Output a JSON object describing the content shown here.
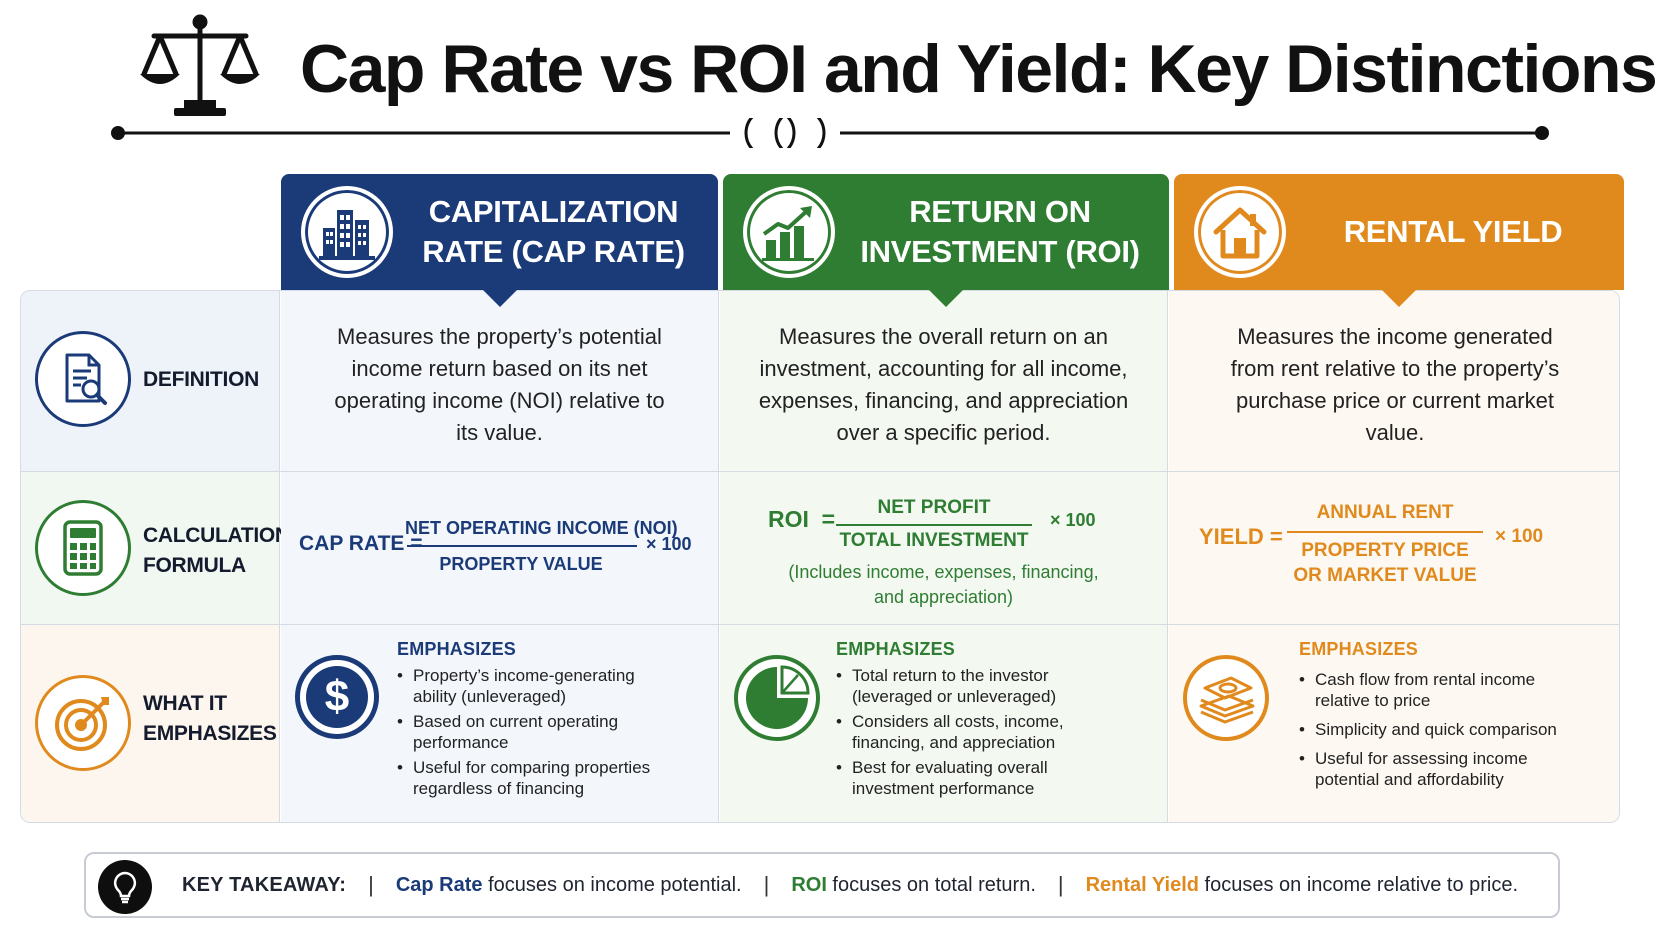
{
  "title": "Cap Rate vs ROI and Yield: Key Distinctions",
  "columns": [
    {
      "title": "CAPITALIZATION RATE (CAP RATE)",
      "icon": "buildings-icon",
      "color": "#1b3a78"
    },
    {
      "title": "RETURN ON INVESTMENT (ROI)",
      "icon": "growth-chart-icon",
      "color": "#2e7d32"
    },
    {
      "title": "RENTAL YIELD",
      "icon": "house-icon",
      "color": "#e08a1e"
    }
  ],
  "rows": {
    "definition": {
      "label": "DEFINITION",
      "icon": "document-search-icon",
      "cells": [
        "Measures the property’s potential income return based on its net operating income (NOI) relative to its value.",
        "Measures the overall return on an investment, accounting for all income, expenses, financing, and appreciation over a specific period.",
        "Measures the income generated from rent relative to the property’s purchase price or current market value."
      ]
    },
    "formula": {
      "label": "CALCULATION FORMULA",
      "icon": "calculator-icon",
      "cap": {
        "lhs": "CAP RATE =",
        "numerator": "NET OPERATING INCOME (NOI)",
        "denominator": "PROPERTY VALUE",
        "multiplier": "× 100"
      },
      "roi": {
        "lhs": "ROI  =",
        "numerator": "NET PROFIT",
        "denominator": "TOTAL INVESTMENT",
        "multiplier": "× 100",
        "note": "(Includes income, expenses, financing, and appreciation)"
      },
      "yield": {
        "lhs": "YIELD =",
        "numerator": "ANNUAL RENT",
        "denominator": "PROPERTY PRICE OR MARKET VALUE",
        "multiplier": "× 100"
      }
    },
    "emphasizes": {
      "label": "WHAT IT EMPHASIZES",
      "icon": "target-icon",
      "heading": "EMPHASIZES",
      "cap": {
        "icon": "dollar-icon",
        "items": [
          "Property’s income-generating ability (unleveraged)",
          "Based on current operating performance",
          "Useful for comparing properties regardless of financing"
        ]
      },
      "roi": {
        "icon": "pie-chart-icon",
        "items": [
          "Total return to the investor (leveraged or unleveraged)",
          "Considers all costs, income, financing, and appreciation",
          "Best for evaluating overall investment performance"
        ]
      },
      "yield": {
        "icon": "cash-stack-icon",
        "items": [
          "Cash flow from rental income relative to price",
          "Simplicity and quick comparison",
          "Useful for assessing income potential and affordability"
        ]
      }
    }
  },
  "takeaway": {
    "label": "KEY TAKEAWAY:",
    "icon": "lightbulb-icon",
    "items": [
      {
        "term": "Cap Rate",
        "text": " focuses on income potential."
      },
      {
        "term": "ROI",
        "text": " focuses on total return."
      },
      {
        "term": "Rental Yield",
        "text": " focuses on income relative to price."
      }
    ]
  }
}
